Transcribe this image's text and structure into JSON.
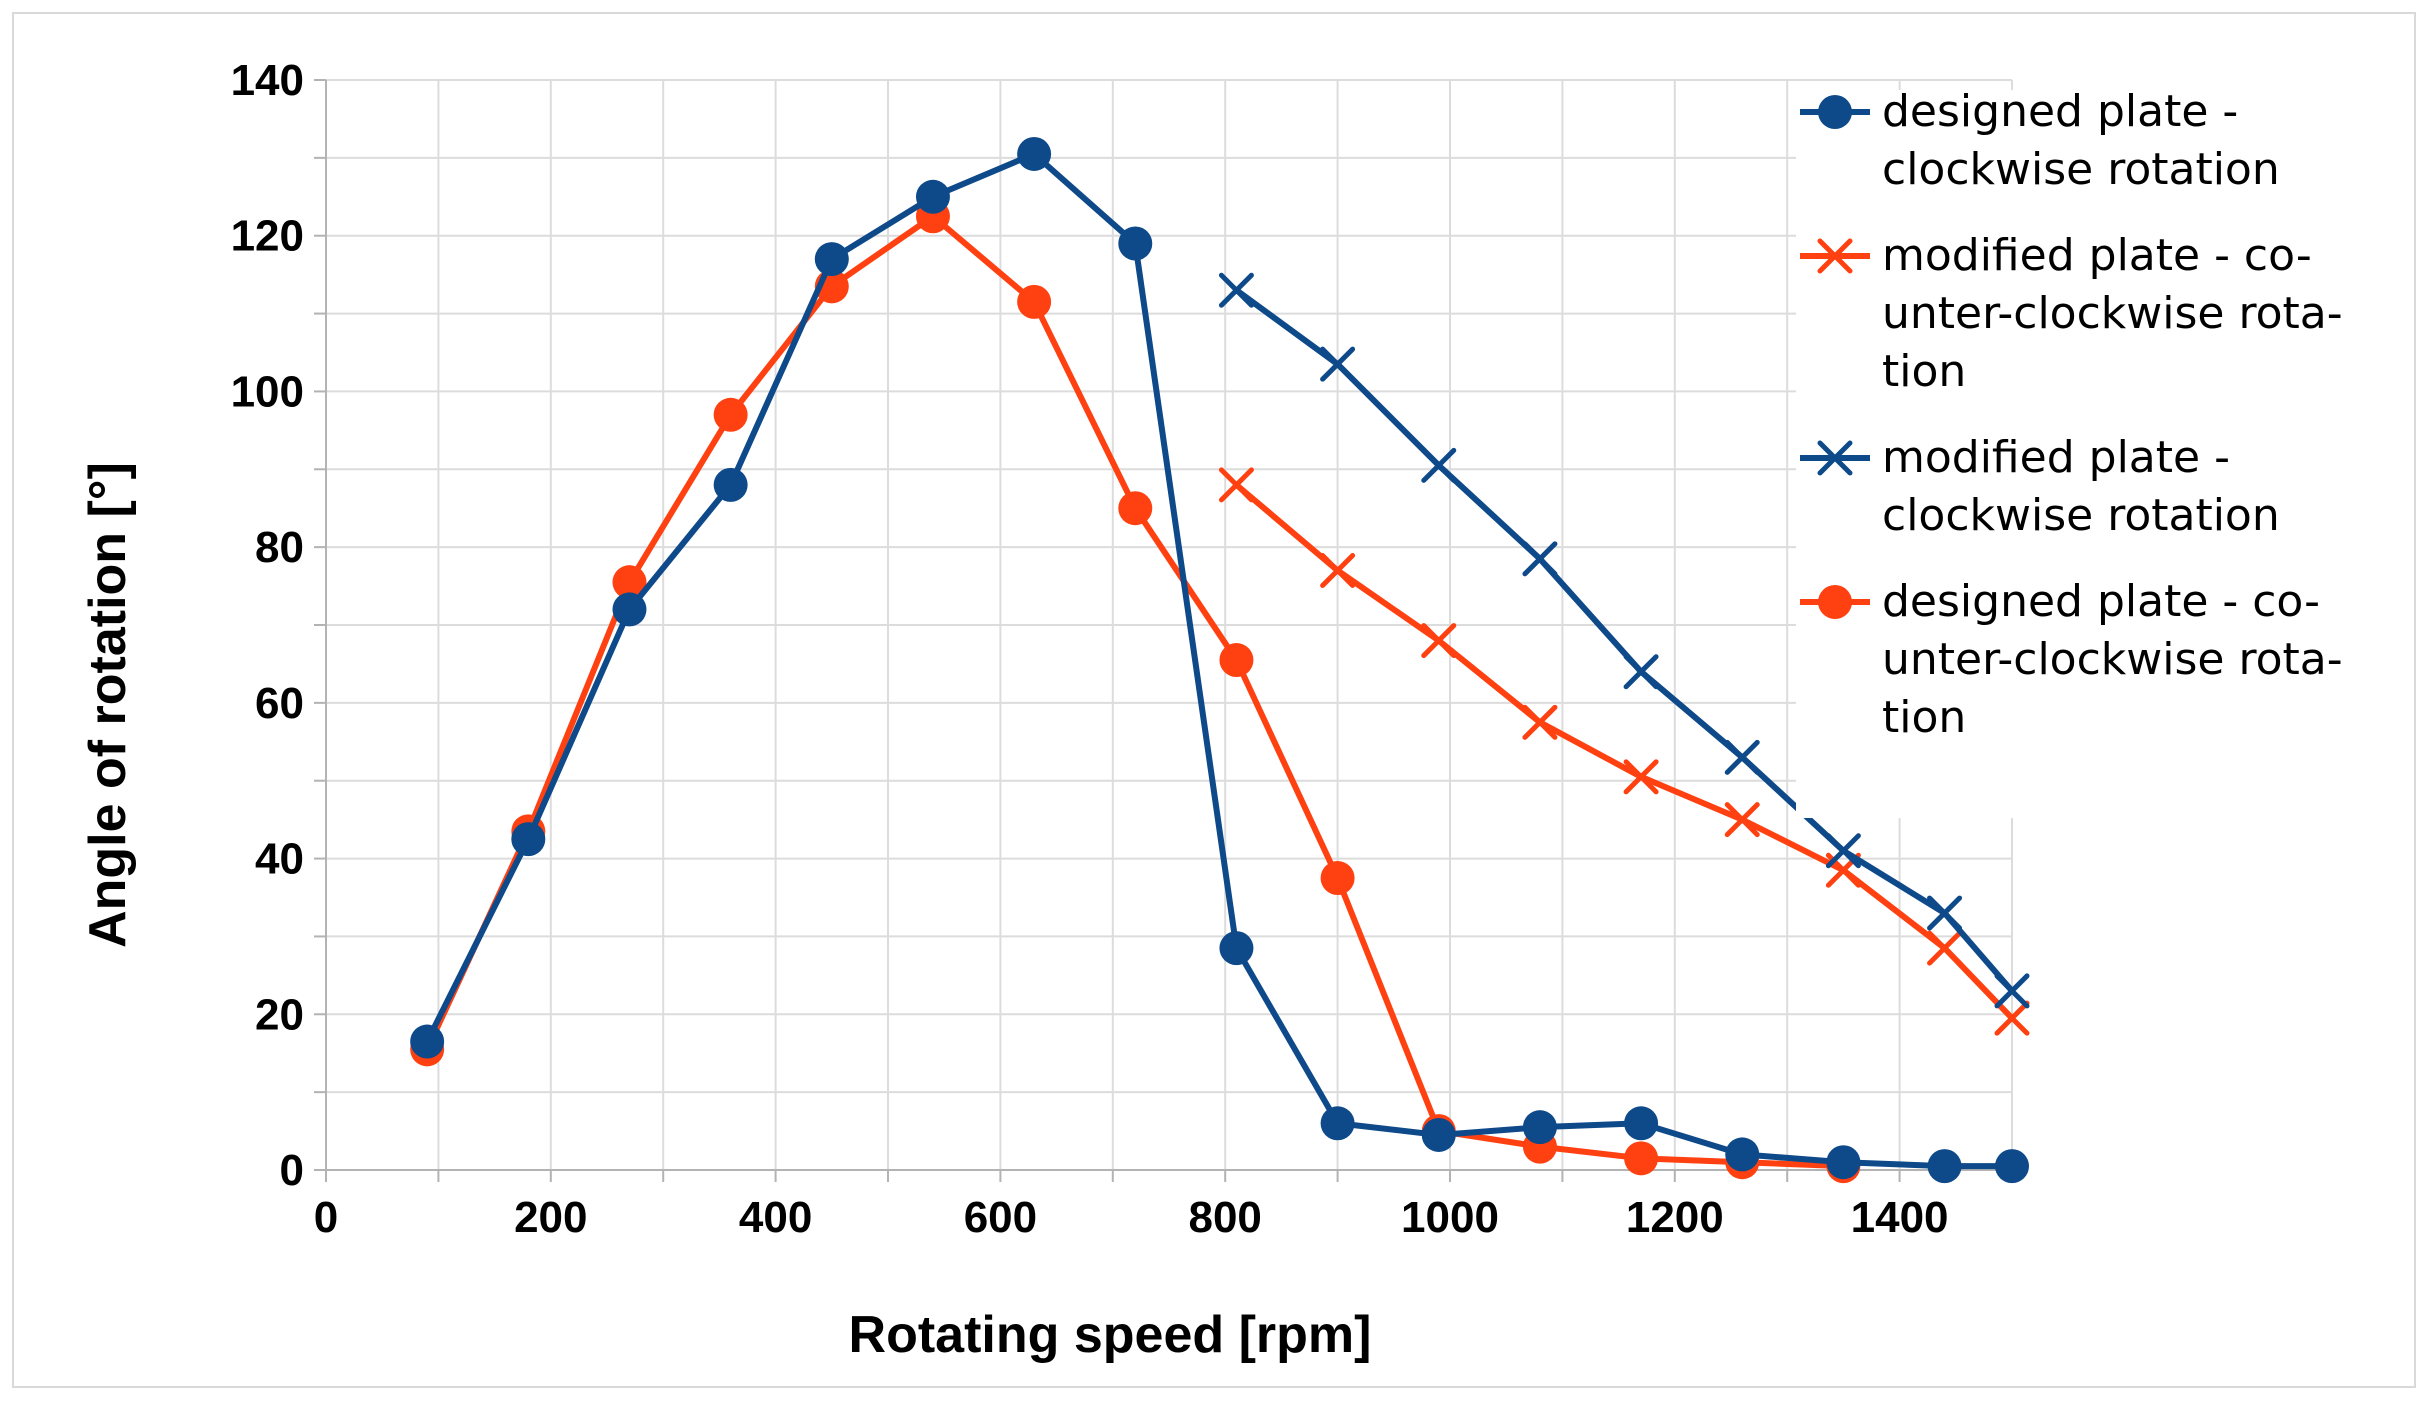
{
  "chart_data": {
    "type": "line",
    "title": "",
    "xlabel": "Rotating speed [rpm]",
    "ylabel": "Angle of rotation [°]",
    "xlim": [
      0,
      1500
    ],
    "ylim": [
      0,
      140
    ],
    "x_ticks": [
      0,
      200,
      400,
      600,
      800,
      1000,
      1200,
      1400
    ],
    "y_ticks": [
      0,
      20,
      40,
      60,
      80,
      100,
      120,
      140
    ],
    "grid": true,
    "legend_position": "right",
    "series": [
      {
        "name": "designed plate - clockwise rotation",
        "legend_lines": [
          "designed plate -",
          "clockwise rotation"
        ],
        "color": "#0e4a8a",
        "marker": "circle",
        "x": [
          90,
          180,
          270,
          360,
          450,
          540,
          630,
          720,
          810,
          900,
          990,
          1080,
          1170,
          1260,
          1350,
          1440,
          1500
        ],
        "values": [
          16.5,
          42.5,
          72,
          88,
          117,
          125,
          130.5,
          119,
          28.5,
          6,
          4.5,
          5.5,
          6,
          2,
          1,
          0.5,
          0.5
        ]
      },
      {
        "name": "modified plate - counter-clockwise rotation",
        "legend_lines": [
          "modified plate - co-",
          "unter-clockwise rota-",
          "tion"
        ],
        "color": "#ff4112",
        "marker": "x",
        "x": [
          810,
          900,
          990,
          1080,
          1170,
          1260,
          1350,
          1440,
          1500
        ],
        "values": [
          88,
          77,
          68,
          57.5,
          50.5,
          45,
          38.5,
          28.5,
          19.5
        ]
      },
      {
        "name": "modified plate - clockwise rotation",
        "legend_lines": [
          "modified plate -",
          "clockwise rotation"
        ],
        "color": "#0e4a8a",
        "marker": "x",
        "x": [
          810,
          900,
          990,
          1080,
          1170,
          1260,
          1350,
          1440,
          1500
        ],
        "values": [
          113,
          103.5,
          90.5,
          78.5,
          64,
          53,
          41,
          33,
          23
        ]
      },
      {
        "name": "designed plate - counter-clockwise rotation",
        "legend_lines": [
          "designed plate - co-",
          "unter-clockwise rota-",
          "tion"
        ],
        "color": "#ff4112",
        "marker": "circle",
        "x": [
          90,
          180,
          270,
          360,
          450,
          540,
          630,
          720,
          810,
          900,
          990,
          1080,
          1170,
          1260,
          1350
        ],
        "values": [
          15.5,
          43.5,
          75.5,
          97,
          113.5,
          122.5,
          111.5,
          85,
          65.5,
          37.5,
          5,
          3,
          1.5,
          1,
          0.5
        ]
      }
    ]
  }
}
